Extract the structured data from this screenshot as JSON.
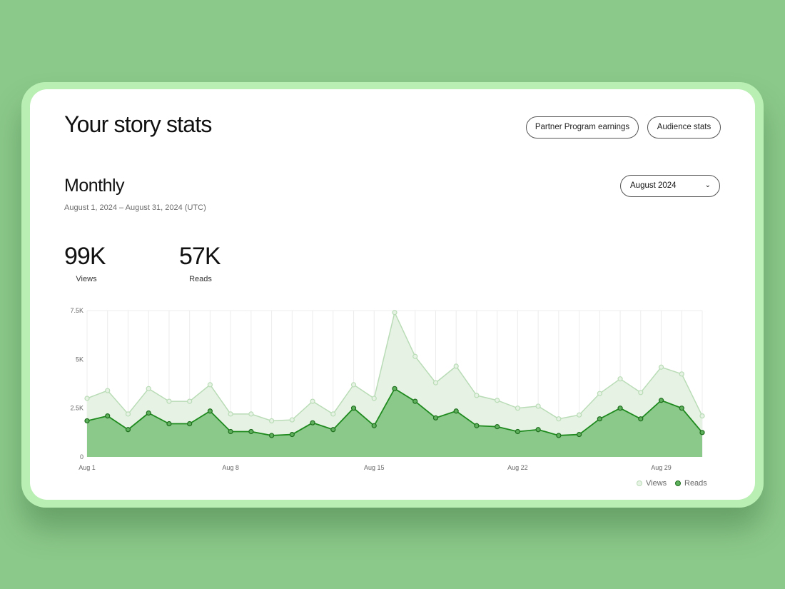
{
  "header": {
    "title": "Your story stats",
    "buttons": [
      "Partner Program earnings",
      "Audience stats"
    ]
  },
  "period": {
    "heading": "Monthly",
    "range": "August 1, 2024 – August 31, 2024 (UTC)",
    "selected_month": "August 2024"
  },
  "totals": {
    "views": "99K",
    "views_label": "Views",
    "reads": "57K",
    "reads_label": "Reads"
  },
  "colors": {
    "background": "#8bc98a",
    "views": "#b9dcb6",
    "reads": "#1e8a1e",
    "reads_fill": "#8bc98a",
    "views_fill": "#e6f3e4"
  },
  "chart_data": {
    "type": "area",
    "x_ticks": [
      "Aug 1",
      "Aug 8",
      "Aug 15",
      "Aug 22",
      "Aug 29"
    ],
    "y_ticks": [
      "0",
      "2.5K",
      "5K",
      "7.5K"
    ],
    "ylim": [
      0,
      7500
    ],
    "grid": true,
    "legend": "bottom-right",
    "x": [
      "Aug 1",
      "Aug 2",
      "Aug 3",
      "Aug 4",
      "Aug 5",
      "Aug 6",
      "Aug 7",
      "Aug 8",
      "Aug 9",
      "Aug 10",
      "Aug 11",
      "Aug 12",
      "Aug 13",
      "Aug 14",
      "Aug 15",
      "Aug 16",
      "Aug 17",
      "Aug 18",
      "Aug 19",
      "Aug 20",
      "Aug 21",
      "Aug 22",
      "Aug 23",
      "Aug 24",
      "Aug 25",
      "Aug 26",
      "Aug 27",
      "Aug 28",
      "Aug 29",
      "Aug 30",
      "Aug 31"
    ],
    "series": [
      {
        "name": "Views",
        "values": [
          3000,
          3400,
          2200,
          3500,
          2850,
          2850,
          3700,
          2200,
          2200,
          1850,
          1900,
          2850,
          2200,
          3700,
          3000,
          7400,
          5150,
          3800,
          4650,
          3150,
          2900,
          2500,
          2600,
          1950,
          2150,
          3250,
          4000,
          3300,
          4600,
          4250,
          2100
        ]
      },
      {
        "name": "Reads",
        "values": [
          1850,
          2100,
          1400,
          2250,
          1700,
          1700,
          2350,
          1300,
          1300,
          1100,
          1150,
          1750,
          1400,
          2500,
          1600,
          3500,
          2850,
          2000,
          2350,
          1600,
          1550,
          1300,
          1400,
          1100,
          1150,
          1950,
          2500,
          1950,
          2900,
          2500,
          1250
        ]
      }
    ]
  }
}
